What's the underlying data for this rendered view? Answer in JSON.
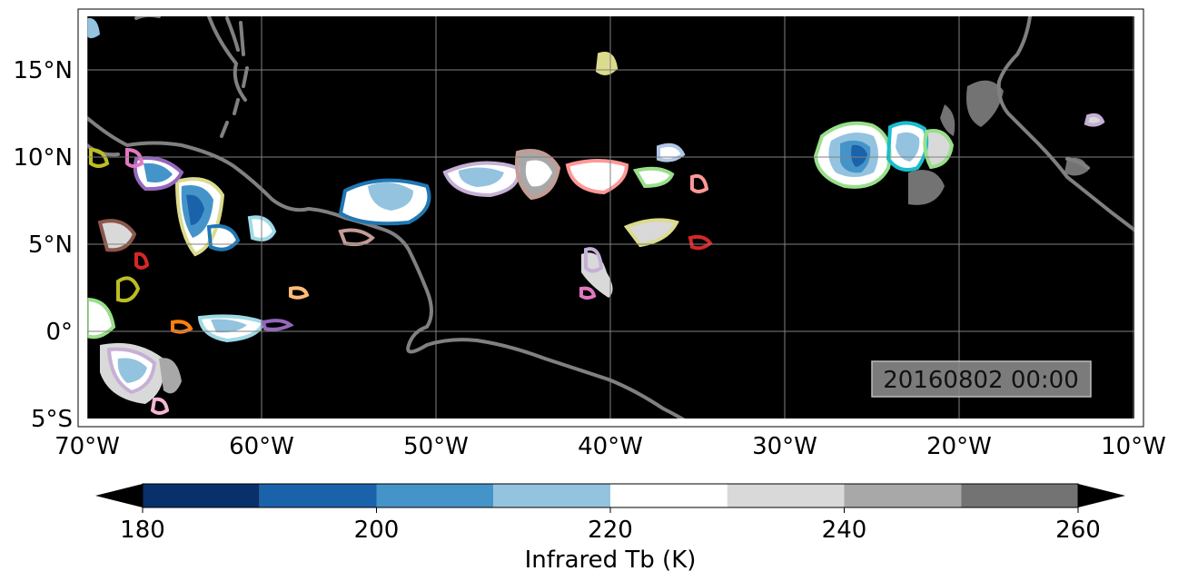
{
  "timestamp": "20160802 00:00",
  "lon_ticks": [
    "70°W",
    "60°W",
    "50°W",
    "40°W",
    "30°W",
    "20°W",
    "10°W"
  ],
  "lat_ticks": [
    "15°N",
    "10°N",
    "5°N",
    "0°",
    "5°S"
  ],
  "colorbar": {
    "label": "Infrared Tb (K)",
    "tick_labels": [
      "180",
      "200",
      "220",
      "240",
      "260"
    ],
    "levels": [
      180,
      190,
      200,
      210,
      220,
      230,
      240,
      250,
      260
    ],
    "colors": [
      "#08306b",
      "#1a63ab",
      "#4594c9",
      "#93c3df",
      "#ffffff",
      "#d9d9d9",
      "#a8a8a8",
      "#737373"
    ],
    "extend": "both",
    "under_color": "#000000",
    "over_color": "#000000"
  },
  "map": {
    "background_color": "#000000",
    "coastline_color": "#808080",
    "gridline_color": "#808080",
    "lon_range": [
      -70,
      -10
    ],
    "lat_range": [
      -5,
      18
    ],
    "gridlines": true
  },
  "track_colors": [
    "#1f77b4",
    "#ff7f0e",
    "#2ca02c",
    "#d62728",
    "#9467bd",
    "#8c564b",
    "#e377c2",
    "#bcbd22",
    "#17becf",
    "#aec7e8",
    "#98df8a",
    "#ff9896",
    "#c5b0d5",
    "#c49c94",
    "#f7b6d2",
    "#dbdb8d",
    "#9edae5"
  ]
}
